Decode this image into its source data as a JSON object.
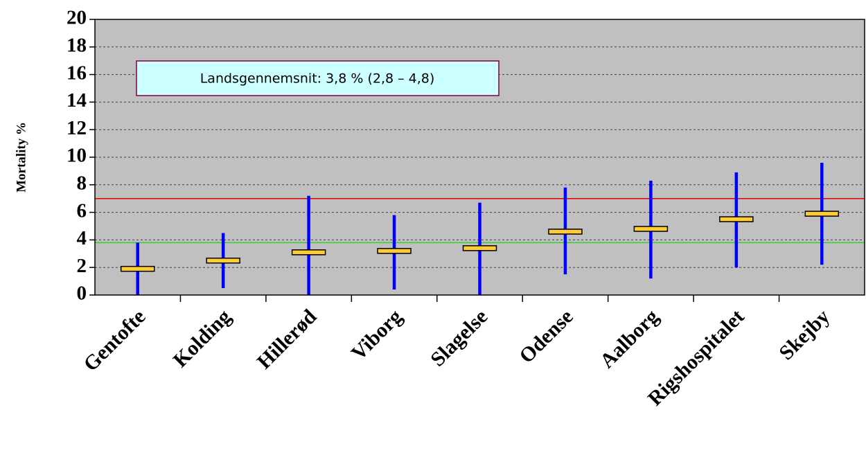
{
  "chart_data": {
    "type": "errorbar",
    "ylabel": "Mortality %",
    "annotation": "Landsgennemsnit: 3,8 % (2,8 – 4,8)",
    "categories": [
      "Gentofte",
      "Kolding",
      "Hillerød",
      "Viborg",
      "Slagelse",
      "Odense",
      "Aalborg",
      "Rigshospitalet",
      "Skejby"
    ],
    "values": [
      1.9,
      2.5,
      3.1,
      3.2,
      3.4,
      4.6,
      4.8,
      5.5,
      5.9
    ],
    "lower": [
      0,
      0.5,
      0,
      0.4,
      0,
      1.5,
      1.2,
      2.0,
      2.2
    ],
    "upper": [
      3.8,
      4.5,
      7.2,
      5.8,
      6.7,
      7.8,
      8.3,
      8.9,
      9.6
    ],
    "color": "#ffcc33",
    "bar_color": "#0000ff",
    "reference_lines": [
      {
        "value": 7,
        "color": "#e00000"
      },
      {
        "value": 3.8,
        "color": "#33cc33"
      }
    ],
    "ylim": [
      0,
      20
    ],
    "yticks": [
      0,
      2,
      4,
      6,
      8,
      10,
      12,
      14,
      16,
      18,
      20
    ],
    "grid": true
  }
}
